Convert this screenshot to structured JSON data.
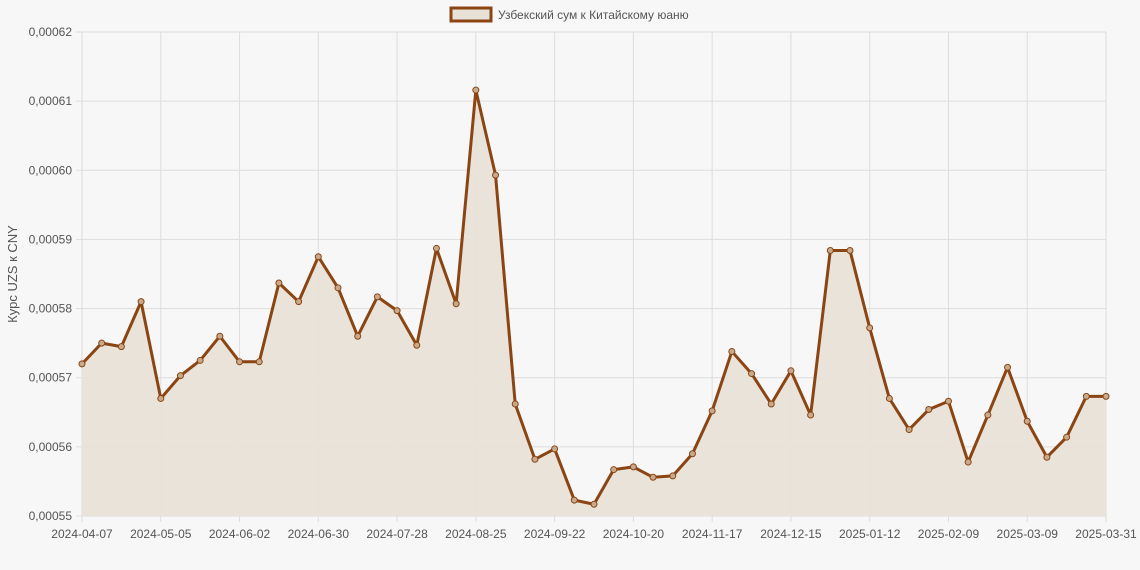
{
  "chart_data": {
    "type": "line",
    "title": "",
    "xlabel": "",
    "ylabel": "Курс UZS к CNY",
    "legend": {
      "position": "top-center"
    },
    "grid": true,
    "colors": {
      "line": "#8b4513",
      "fill": "#e8e1d8",
      "point_fill": "#c8a98b",
      "grid": "#dddddd",
      "background": "#f7f7f7"
    },
    "ylim": [
      0.00055,
      0.00062
    ],
    "y_ticks": [
      "0,00055",
      "0,00056",
      "0,00057",
      "0,00058",
      "0,00059",
      "0,00060",
      "0,00061",
      "0,00062"
    ],
    "x_tick_labels": [
      "2024-04-07",
      "2024-05-05",
      "2024-06-02",
      "2024-06-30",
      "2024-07-28",
      "2024-08-25",
      "2024-09-22",
      "2024-10-20",
      "2024-11-17",
      "2024-12-15",
      "2025-01-12",
      "2025-02-09",
      "2025-03-09",
      "2025-03-31"
    ],
    "series": [
      {
        "name": "Узбекский сум к Китайскому юаню",
        "values": [
          0.000572,
          0.000575,
          0.0005745,
          0.000581,
          0.000567,
          0.0005703,
          0.0005725,
          0.000576,
          0.0005723,
          0.0005723,
          0.0005837,
          0.000581,
          0.0005875,
          0.000583,
          0.000576,
          0.0005817,
          0.0005797,
          0.0005747,
          0.0005887,
          0.0005807,
          0.0006116,
          0.0005993,
          0.0005662,
          0.0005582,
          0.0005597,
          0.0005523,
          0.0005517,
          0.0005567,
          0.0005571,
          0.0005556,
          0.0005558,
          0.000559,
          0.0005652,
          0.0005738,
          0.0005706,
          0.0005662,
          0.000571,
          0.0005646,
          0.0005884,
          0.0005884,
          0.0005772,
          0.000567,
          0.0005625,
          0.0005654,
          0.0005666,
          0.0005578,
          0.0005646,
          0.0005715,
          0.0005637,
          0.0005585,
          0.0005614,
          0.0005673,
          0.0005673
        ]
      }
    ]
  }
}
